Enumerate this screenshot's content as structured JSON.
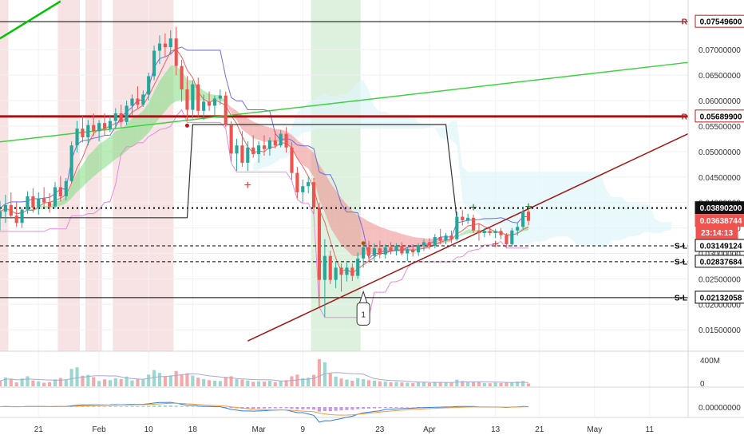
{
  "chart_data": {
    "type": "candlestick",
    "y_axis_ticks": [
      "0.07000000",
      "0.06500000",
      "0.06000000",
      "0.05500000",
      "0.05000000",
      "0.04500000",
      "0.04000000",
      "0.03500000",
      "0.03000000",
      "0.02500000",
      "0.02000000",
      "0.01500000"
    ],
    "y_range": [
      0.0108,
      0.0785
    ],
    "x_axis_ticks": [
      {
        "label": "21",
        "date": "2020-01-21"
      },
      {
        "label": "Feb",
        "date": "2020-02-01"
      },
      {
        "label": "10",
        "date": "2020-02-10"
      },
      {
        "label": "18",
        "date": "2020-02-18"
      },
      {
        "label": "Mar",
        "date": "2020-03-01"
      },
      {
        "label": "9",
        "date": "2020-03-09"
      },
      {
        "label": "23",
        "date": "2020-03-23"
      },
      {
        "label": "Apr",
        "date": "2020-04-01"
      },
      {
        "label": "13",
        "date": "2020-04-13"
      },
      {
        "label": "21",
        "date": "2020-04-21"
      },
      {
        "label": "May",
        "date": "2020-05-01"
      },
      {
        "label": "11",
        "date": "2020-05-11"
      }
    ],
    "x_range": [
      "2020-01-14",
      "2020-05-18"
    ],
    "price_badges": [
      {
        "label": "R",
        "value": "0.07549600",
        "color": "#b71c1c",
        "style": "outline"
      },
      {
        "label": "R",
        "value": "0.05689900",
        "color": "#b71c1c",
        "style": "outline"
      },
      {
        "label": "",
        "value": "0.03890200",
        "color": "#000000",
        "style": "dark"
      },
      {
        "label": "",
        "value": "0.03638744",
        "color": "#ef5350",
        "style": "current"
      },
      {
        "label": "",
        "value": "23:14:13",
        "color": "#ef5350",
        "style": "countdown"
      },
      {
        "label": "S-L",
        "value": "0.03149124",
        "color": "#000000",
        "style": "outline"
      },
      {
        "label": "S-L",
        "value": "0.02837684",
        "color": "#000000",
        "style": "outline"
      },
      {
        "label": "S-L",
        "value": "0.02132058",
        "color": "#000000",
        "style": "outline"
      }
    ],
    "horizontal_levels": [
      {
        "value": 0.075496,
        "style": "solid",
        "color": "#000000"
      },
      {
        "value": 0.056899,
        "style": "thick",
        "color": "#a31515"
      },
      {
        "value": 0.038902,
        "style": "dotted",
        "color": "#000000"
      },
      {
        "value": 0.03149124,
        "style": "dashed",
        "color": "#000000"
      },
      {
        "value": 0.02837684,
        "style": "dashed",
        "color": "#000000"
      },
      {
        "value": 0.02132058,
        "style": "solid",
        "color": "#000000"
      }
    ],
    "trendlines": [
      {
        "color": "#00c400",
        "from": [
          "2020-01-14",
          0.0722
        ],
        "to": [
          "2020-01-25",
          0.0795
        ]
      },
      {
        "color": "#3fd13f",
        "from": [
          "2020-01-14",
          0.0519
        ],
        "to": [
          "2020-05-18",
          0.0675
        ]
      },
      {
        "color": "#a31515",
        "from": [
          "2020-02-28",
          0.0128
        ],
        "to": [
          "2020-05-18",
          0.0535
        ]
      }
    ],
    "callout": {
      "label": "1",
      "date": "2020-03-20",
      "value": 0.0225
    },
    "marker_labels": [
      "+",
      "+",
      "+",
      "+",
      "+"
    ],
    "candles": [
      [
        "2020-01-14",
        0.0371,
        0.0403,
        0.0345,
        0.0382
      ],
      [
        "2020-01-15",
        0.0382,
        0.0415,
        0.036,
        0.0395
      ],
      [
        "2020-01-16",
        0.0395,
        0.042,
        0.0368,
        0.0374
      ],
      [
        "2020-01-17",
        0.0374,
        0.0401,
        0.0352,
        0.036
      ],
      [
        "2020-01-18",
        0.036,
        0.039,
        0.035,
        0.0386
      ],
      [
        "2020-01-19",
        0.0386,
        0.0422,
        0.0378,
        0.0412
      ],
      [
        "2020-01-20",
        0.0412,
        0.0428,
        0.038,
        0.039
      ],
      [
        "2020-01-21",
        0.039,
        0.042,
        0.0376,
        0.0408
      ],
      [
        "2020-01-22",
        0.0408,
        0.043,
        0.0392,
        0.04
      ],
      [
        "2020-01-23",
        0.04,
        0.0418,
        0.038,
        0.0392
      ],
      [
        "2020-01-24",
        0.0392,
        0.044,
        0.0388,
        0.043
      ],
      [
        "2020-01-25",
        0.043,
        0.0452,
        0.0402,
        0.0412
      ],
      [
        "2020-01-26",
        0.0412,
        0.0448,
        0.0404,
        0.0442
      ],
      [
        "2020-01-27",
        0.0442,
        0.052,
        0.0438,
        0.0512
      ],
      [
        "2020-01-28",
        0.0512,
        0.056,
        0.0498,
        0.0545
      ],
      [
        "2020-01-29",
        0.0545,
        0.057,
        0.0518,
        0.0528
      ],
      [
        "2020-01-30",
        0.0528,
        0.0562,
        0.0512,
        0.0552
      ],
      [
        "2020-01-31",
        0.0552,
        0.0575,
        0.053,
        0.054
      ],
      [
        "2020-02-01",
        0.054,
        0.0562,
        0.052,
        0.0556
      ],
      [
        "2020-02-02",
        0.0556,
        0.0575,
        0.0532,
        0.0545
      ],
      [
        "2020-02-03",
        0.0545,
        0.0572,
        0.0538,
        0.056
      ],
      [
        "2020-02-04",
        0.056,
        0.0585,
        0.0546,
        0.0575
      ],
      [
        "2020-02-05",
        0.0575,
        0.0592,
        0.0548,
        0.0558
      ],
      [
        "2020-02-06",
        0.0558,
        0.06,
        0.0552,
        0.059
      ],
      [
        "2020-02-07",
        0.059,
        0.0612,
        0.0572,
        0.0604
      ],
      [
        "2020-02-08",
        0.0604,
        0.0628,
        0.0585,
        0.0592
      ],
      [
        "2020-02-09",
        0.0592,
        0.062,
        0.0588,
        0.0612
      ],
      [
        "2020-02-10",
        0.0612,
        0.0655,
        0.06,
        0.0648
      ],
      [
        "2020-02-11",
        0.0648,
        0.0708,
        0.064,
        0.0698
      ],
      [
        "2020-02-12",
        0.0698,
        0.0728,
        0.0672,
        0.0712
      ],
      [
        "2020-02-13",
        0.0712,
        0.0732,
        0.0685,
        0.0705
      ],
      [
        "2020-02-14",
        0.0705,
        0.0738,
        0.069,
        0.0722
      ],
      [
        "2020-02-15",
        0.0722,
        0.0745,
        0.065,
        0.0668
      ],
      [
        "2020-02-16",
        0.0668,
        0.068,
        0.0598,
        0.0622
      ],
      [
        "2020-02-17",
        0.0622,
        0.0648,
        0.056,
        0.0582
      ],
      [
        "2020-02-18",
        0.0582,
        0.064,
        0.0565,
        0.0632
      ],
      [
        "2020-02-19",
        0.0632,
        0.0645,
        0.0568,
        0.058
      ],
      [
        "2020-02-20",
        0.058,
        0.0612,
        0.0562,
        0.0598
      ],
      [
        "2020-02-21",
        0.0598,
        0.0618,
        0.058,
        0.059
      ],
      [
        "2020-02-22",
        0.059,
        0.061,
        0.0572,
        0.0604
      ],
      [
        "2020-02-23",
        0.0604,
        0.0622,
        0.0592,
        0.061
      ],
      [
        "2020-02-24",
        0.061,
        0.0618,
        0.0548,
        0.0552
      ],
      [
        "2020-02-25",
        0.0552,
        0.056,
        0.048,
        0.0496
      ],
      [
        "2020-02-26",
        0.0496,
        0.0525,
        0.0462,
        0.0512
      ],
      [
        "2020-02-27",
        0.0512,
        0.054,
        0.047,
        0.0478
      ],
      [
        "2020-02-28",
        0.0478,
        0.052,
        0.0462,
        0.0508
      ],
      [
        "2020-02-29",
        0.0508,
        0.0532,
        0.0488,
        0.0495
      ],
      [
        "2020-03-01",
        0.0495,
        0.052,
        0.0478,
        0.0512
      ],
      [
        "2020-03-02",
        0.0512,
        0.0532,
        0.0492,
        0.0505
      ],
      [
        "2020-03-03",
        0.0505,
        0.0528,
        0.0492,
        0.0522
      ],
      [
        "2020-03-04",
        0.0522,
        0.054,
        0.0506,
        0.0512
      ],
      [
        "2020-03-05",
        0.0512,
        0.0542,
        0.0508,
        0.0535
      ],
      [
        "2020-03-06",
        0.0535,
        0.0548,
        0.0498,
        0.0508
      ],
      [
        "2020-03-07",
        0.0508,
        0.0518,
        0.0445,
        0.0458
      ],
      [
        "2020-03-08",
        0.0458,
        0.047,
        0.0408,
        0.042
      ],
      [
        "2020-03-09",
        0.042,
        0.0445,
        0.04,
        0.0432
      ],
      [
        "2020-03-10",
        0.0432,
        0.045,
        0.0418,
        0.044
      ],
      [
        "2020-03-11",
        0.044,
        0.0448,
        0.0378,
        0.039
      ],
      [
        "2020-03-12",
        0.039,
        0.04,
        0.0195,
        0.0248
      ],
      [
        "2020-03-13",
        0.0248,
        0.0328,
        0.0175,
        0.0295
      ],
      [
        "2020-03-14",
        0.0295,
        0.0305,
        0.024,
        0.0248
      ],
      [
        "2020-03-15",
        0.0248,
        0.0285,
        0.0232,
        0.0272
      ],
      [
        "2020-03-16",
        0.0272,
        0.028,
        0.0225,
        0.0258
      ],
      [
        "2020-03-17",
        0.0258,
        0.0282,
        0.0245,
        0.0272
      ],
      [
        "2020-03-18",
        0.0272,
        0.028,
        0.0246,
        0.0256
      ],
      [
        "2020-03-19",
        0.0256,
        0.0302,
        0.025,
        0.029
      ],
      [
        "2020-03-20",
        0.029,
        0.0322,
        0.0272,
        0.0312
      ],
      [
        "2020-03-21",
        0.0312,
        0.0325,
        0.0284,
        0.0295
      ],
      [
        "2020-03-22",
        0.0295,
        0.032,
        0.0285,
        0.031
      ],
      [
        "2020-03-23",
        0.031,
        0.0325,
        0.029,
        0.0298
      ],
      [
        "2020-03-24",
        0.0298,
        0.0318,
        0.029,
        0.0312
      ],
      [
        "2020-03-25",
        0.0312,
        0.0322,
        0.0298,
        0.0305
      ],
      [
        "2020-03-26",
        0.0305,
        0.032,
        0.0296,
        0.0315
      ],
      [
        "2020-03-27",
        0.0315,
        0.0322,
        0.0296,
        0.03
      ],
      [
        "2020-03-28",
        0.03,
        0.0312,
        0.0285,
        0.0308
      ],
      [
        "2020-03-29",
        0.0308,
        0.0318,
        0.0294,
        0.0302
      ],
      [
        "2020-03-30",
        0.0302,
        0.032,
        0.0295,
        0.0316
      ],
      [
        "2020-03-31",
        0.0316,
        0.0328,
        0.0305,
        0.0322
      ],
      [
        "2020-04-01",
        0.0322,
        0.033,
        0.0308,
        0.0315
      ],
      [
        "2020-04-02",
        0.0315,
        0.0338,
        0.031,
        0.0332
      ],
      [
        "2020-04-03",
        0.0332,
        0.0348,
        0.0318,
        0.0325
      ],
      [
        "2020-04-04",
        0.0325,
        0.034,
        0.0318,
        0.0335
      ],
      [
        "2020-04-05",
        0.0335,
        0.0345,
        0.032,
        0.0328
      ],
      [
        "2020-04-06",
        0.0328,
        0.0382,
        0.0325,
        0.0372
      ],
      [
        "2020-04-07",
        0.0372,
        0.0385,
        0.0355,
        0.0365
      ],
      [
        "2020-04-08",
        0.0365,
        0.0378,
        0.0358,
        0.037
      ],
      [
        "2020-04-09",
        0.037,
        0.0376,
        0.034,
        0.0345
      ],
      [
        "2020-04-10",
        0.0345,
        0.0358,
        0.0325,
        0.034
      ],
      [
        "2020-04-11",
        0.034,
        0.035,
        0.0332,
        0.0344
      ],
      [
        "2020-04-12",
        0.0344,
        0.0352,
        0.0335,
        0.034
      ],
      [
        "2020-04-13",
        0.034,
        0.0348,
        0.033,
        0.0344
      ],
      [
        "2020-04-14",
        0.0344,
        0.035,
        0.0328,
        0.0336
      ],
      [
        "2020-04-15",
        0.0336,
        0.034,
        0.0312,
        0.0318
      ],
      [
        "2020-04-16",
        0.0318,
        0.035,
        0.0314,
        0.0345
      ],
      [
        "2020-04-17",
        0.0345,
        0.036,
        0.0335,
        0.0352
      ],
      [
        "2020-04-18",
        0.0352,
        0.0392,
        0.0348,
        0.0382
      ],
      [
        "2020-04-19",
        0.0382,
        0.0386,
        0.0355,
        0.0364
      ]
    ],
    "volume_axis": [
      "400M",
      "0"
    ],
    "volume": [
      [
        19,
        "d"
      ],
      [
        32,
        "u"
      ],
      [
        27,
        "d"
      ],
      [
        14,
        "d"
      ],
      [
        28,
        "u"
      ],
      [
        36,
        "u"
      ],
      [
        21,
        "d"
      ],
      [
        18,
        "u"
      ],
      [
        13,
        "d"
      ],
      [
        15,
        "d"
      ],
      [
        25,
        "u"
      ],
      [
        30,
        "d"
      ],
      [
        24,
        "u"
      ],
      [
        62,
        "u"
      ],
      [
        68,
        "u"
      ],
      [
        38,
        "d"
      ],
      [
        41,
        "u"
      ],
      [
        33,
        "d"
      ],
      [
        19,
        "u"
      ],
      [
        25,
        "d"
      ],
      [
        22,
        "u"
      ],
      [
        29,
        "u"
      ],
      [
        26,
        "d"
      ],
      [
        35,
        "u"
      ],
      [
        21,
        "u"
      ],
      [
        27,
        "d"
      ],
      [
        25,
        "u"
      ],
      [
        42,
        "u"
      ],
      [
        58,
        "u"
      ],
      [
        48,
        "u"
      ],
      [
        36,
        "d"
      ],
      [
        39,
        "u"
      ],
      [
        55,
        "d"
      ],
      [
        43,
        "d"
      ],
      [
        47,
        "d"
      ],
      [
        38,
        "u"
      ],
      [
        31,
        "d"
      ],
      [
        26,
        "u"
      ],
      [
        22,
        "d"
      ],
      [
        20,
        "u"
      ],
      [
        19,
        "u"
      ],
      [
        34,
        "d"
      ],
      [
        36,
        "d"
      ],
      [
        26,
        "u"
      ],
      [
        24,
        "d"
      ],
      [
        21,
        "u"
      ],
      [
        16,
        "d"
      ],
      [
        18,
        "u"
      ],
      [
        17,
        "d"
      ],
      [
        20,
        "u"
      ],
      [
        15,
        "d"
      ],
      [
        19,
        "u"
      ],
      [
        22,
        "d"
      ],
      [
        36,
        "d"
      ],
      [
        42,
        "d"
      ],
      [
        29,
        "u"
      ],
      [
        31,
        "u"
      ],
      [
        41,
        "d"
      ],
      [
        97,
        "d"
      ],
      [
        86,
        "u"
      ],
      [
        46,
        "d"
      ],
      [
        35,
        "u"
      ],
      [
        28,
        "d"
      ],
      [
        24,
        "u"
      ],
      [
        20,
        "d"
      ],
      [
        29,
        "u"
      ],
      [
        26,
        "u"
      ],
      [
        22,
        "d"
      ],
      [
        20,
        "u"
      ],
      [
        18,
        "d"
      ],
      [
        17,
        "u"
      ],
      [
        15,
        "d"
      ],
      [
        16,
        "u"
      ],
      [
        14,
        "d"
      ],
      [
        13,
        "u"
      ],
      [
        12,
        "d"
      ],
      [
        14,
        "u"
      ],
      [
        15,
        "u"
      ],
      [
        12,
        "d"
      ],
      [
        16,
        "u"
      ],
      [
        15,
        "d"
      ],
      [
        14,
        "u"
      ],
      [
        13,
        "d"
      ],
      [
        24,
        "u"
      ],
      [
        19,
        "d"
      ],
      [
        14,
        "u"
      ],
      [
        17,
        "d"
      ],
      [
        15,
        "d"
      ],
      [
        12,
        "u"
      ],
      [
        11,
        "d"
      ],
      [
        13,
        "u"
      ],
      [
        12,
        "d"
      ],
      [
        14,
        "d"
      ],
      [
        15,
        "u"
      ],
      [
        17,
        "u"
      ],
      [
        19,
        "u"
      ],
      [
        10,
        "d"
      ]
    ],
    "oscillator_axis": [
      "0.00000000"
    ],
    "oscillator": [
      0.0004,
      0.0005,
      0.0004,
      0.0003,
      0.0004,
      0.0006,
      0.0005,
      0.0006,
      0.0005,
      0.0004,
      0.0006,
      0.0005,
      0.0007,
      0.0012,
      0.0018,
      0.002,
      0.0021,
      0.002,
      0.0021,
      0.0019,
      0.002,
      0.0022,
      0.002,
      0.0023,
      0.0025,
      0.0024,
      0.0026,
      0.003,
      0.0038,
      0.0043,
      0.0043,
      0.0044,
      0.0036,
      0.0026,
      0.0017,
      0.0016,
      0.0009,
      0.0007,
      0.0005,
      0.0004,
      0.0003,
      -0.0008,
      -0.0022,
      -0.0028,
      -0.0036,
      -0.0036,
      -0.0038,
      -0.0036,
      -0.0034,
      -0.003,
      -0.0029,
      -0.0026,
      -0.0028,
      -0.004,
      -0.0052,
      -0.0052,
      -0.0048,
      -0.0058,
      -0.0105,
      -0.0095,
      -0.0096,
      -0.0088,
      -0.008,
      -0.0071,
      -0.0064,
      -0.005,
      -0.004,
      -0.0036,
      -0.003,
      -0.0026,
      -0.0022,
      -0.0019,
      -0.0016,
      -0.0014,
      -0.0012,
      -0.001,
      -0.0007,
      -0.0005,
      -0.0004,
      -0.0002,
      -0.0001,
      0.0001,
      0.0001,
      0.0006,
      0.0005,
      0.0006,
      0.0006,
      0.0001,
      0.0001,
      0.0,
      0.0,
      -0.0001,
      -0.0004,
      0.0,
      0.0002,
      0.0006,
      0.0004
    ]
  }
}
